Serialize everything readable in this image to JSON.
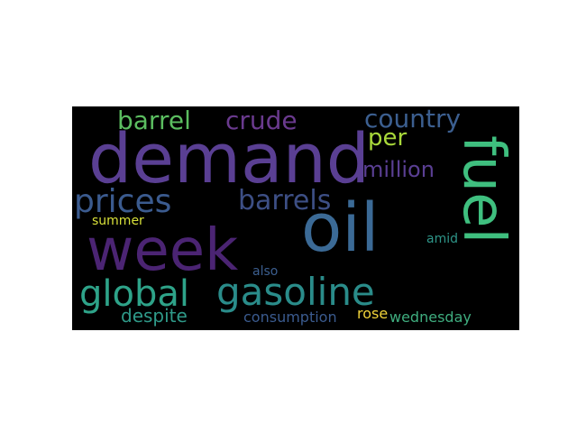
{
  "words": [
    {
      "id": "demand",
      "text": "demand",
      "color": "#5a3f93"
    },
    {
      "id": "oil",
      "text": "oil",
      "color": "#3b6a96"
    },
    {
      "id": "week",
      "text": "week",
      "color": "#4b2473"
    },
    {
      "id": "fuel",
      "text": "fuel",
      "color": "#3fbf7f"
    },
    {
      "id": "gasoline",
      "text": "gasoline",
      "color": "#2a8c8a"
    },
    {
      "id": "global",
      "text": "global",
      "color": "#2ea389"
    },
    {
      "id": "prices",
      "text": "prices",
      "color": "#3b5b8f"
    },
    {
      "id": "barrels",
      "text": "barrels",
      "color": "#3d4f85"
    },
    {
      "id": "barrel",
      "text": "barrel",
      "color": "#5bbd60"
    },
    {
      "id": "crude",
      "text": "crude",
      "color": "#6a3a8e"
    },
    {
      "id": "country",
      "text": "country",
      "color": "#3c5f90"
    },
    {
      "id": "per",
      "text": "per",
      "color": "#a8d83a"
    },
    {
      "id": "million",
      "text": "million",
      "color": "#5a3f93"
    },
    {
      "id": "despite",
      "text": "despite",
      "color": "#2f9a89"
    },
    {
      "id": "consumption",
      "text": "consumption",
      "color": "#3b5b8f"
    },
    {
      "id": "wednesday",
      "text": "wednesday",
      "color": "#3fad7f"
    },
    {
      "id": "summer",
      "text": "summer",
      "color": "#d8e03a"
    },
    {
      "id": "amid",
      "text": "amid",
      "color": "#2e9588"
    },
    {
      "id": "also",
      "text": "also",
      "color": "#3c5f90"
    },
    {
      "id": "rose",
      "text": "rose",
      "color": "#f1d33a"
    }
  ]
}
